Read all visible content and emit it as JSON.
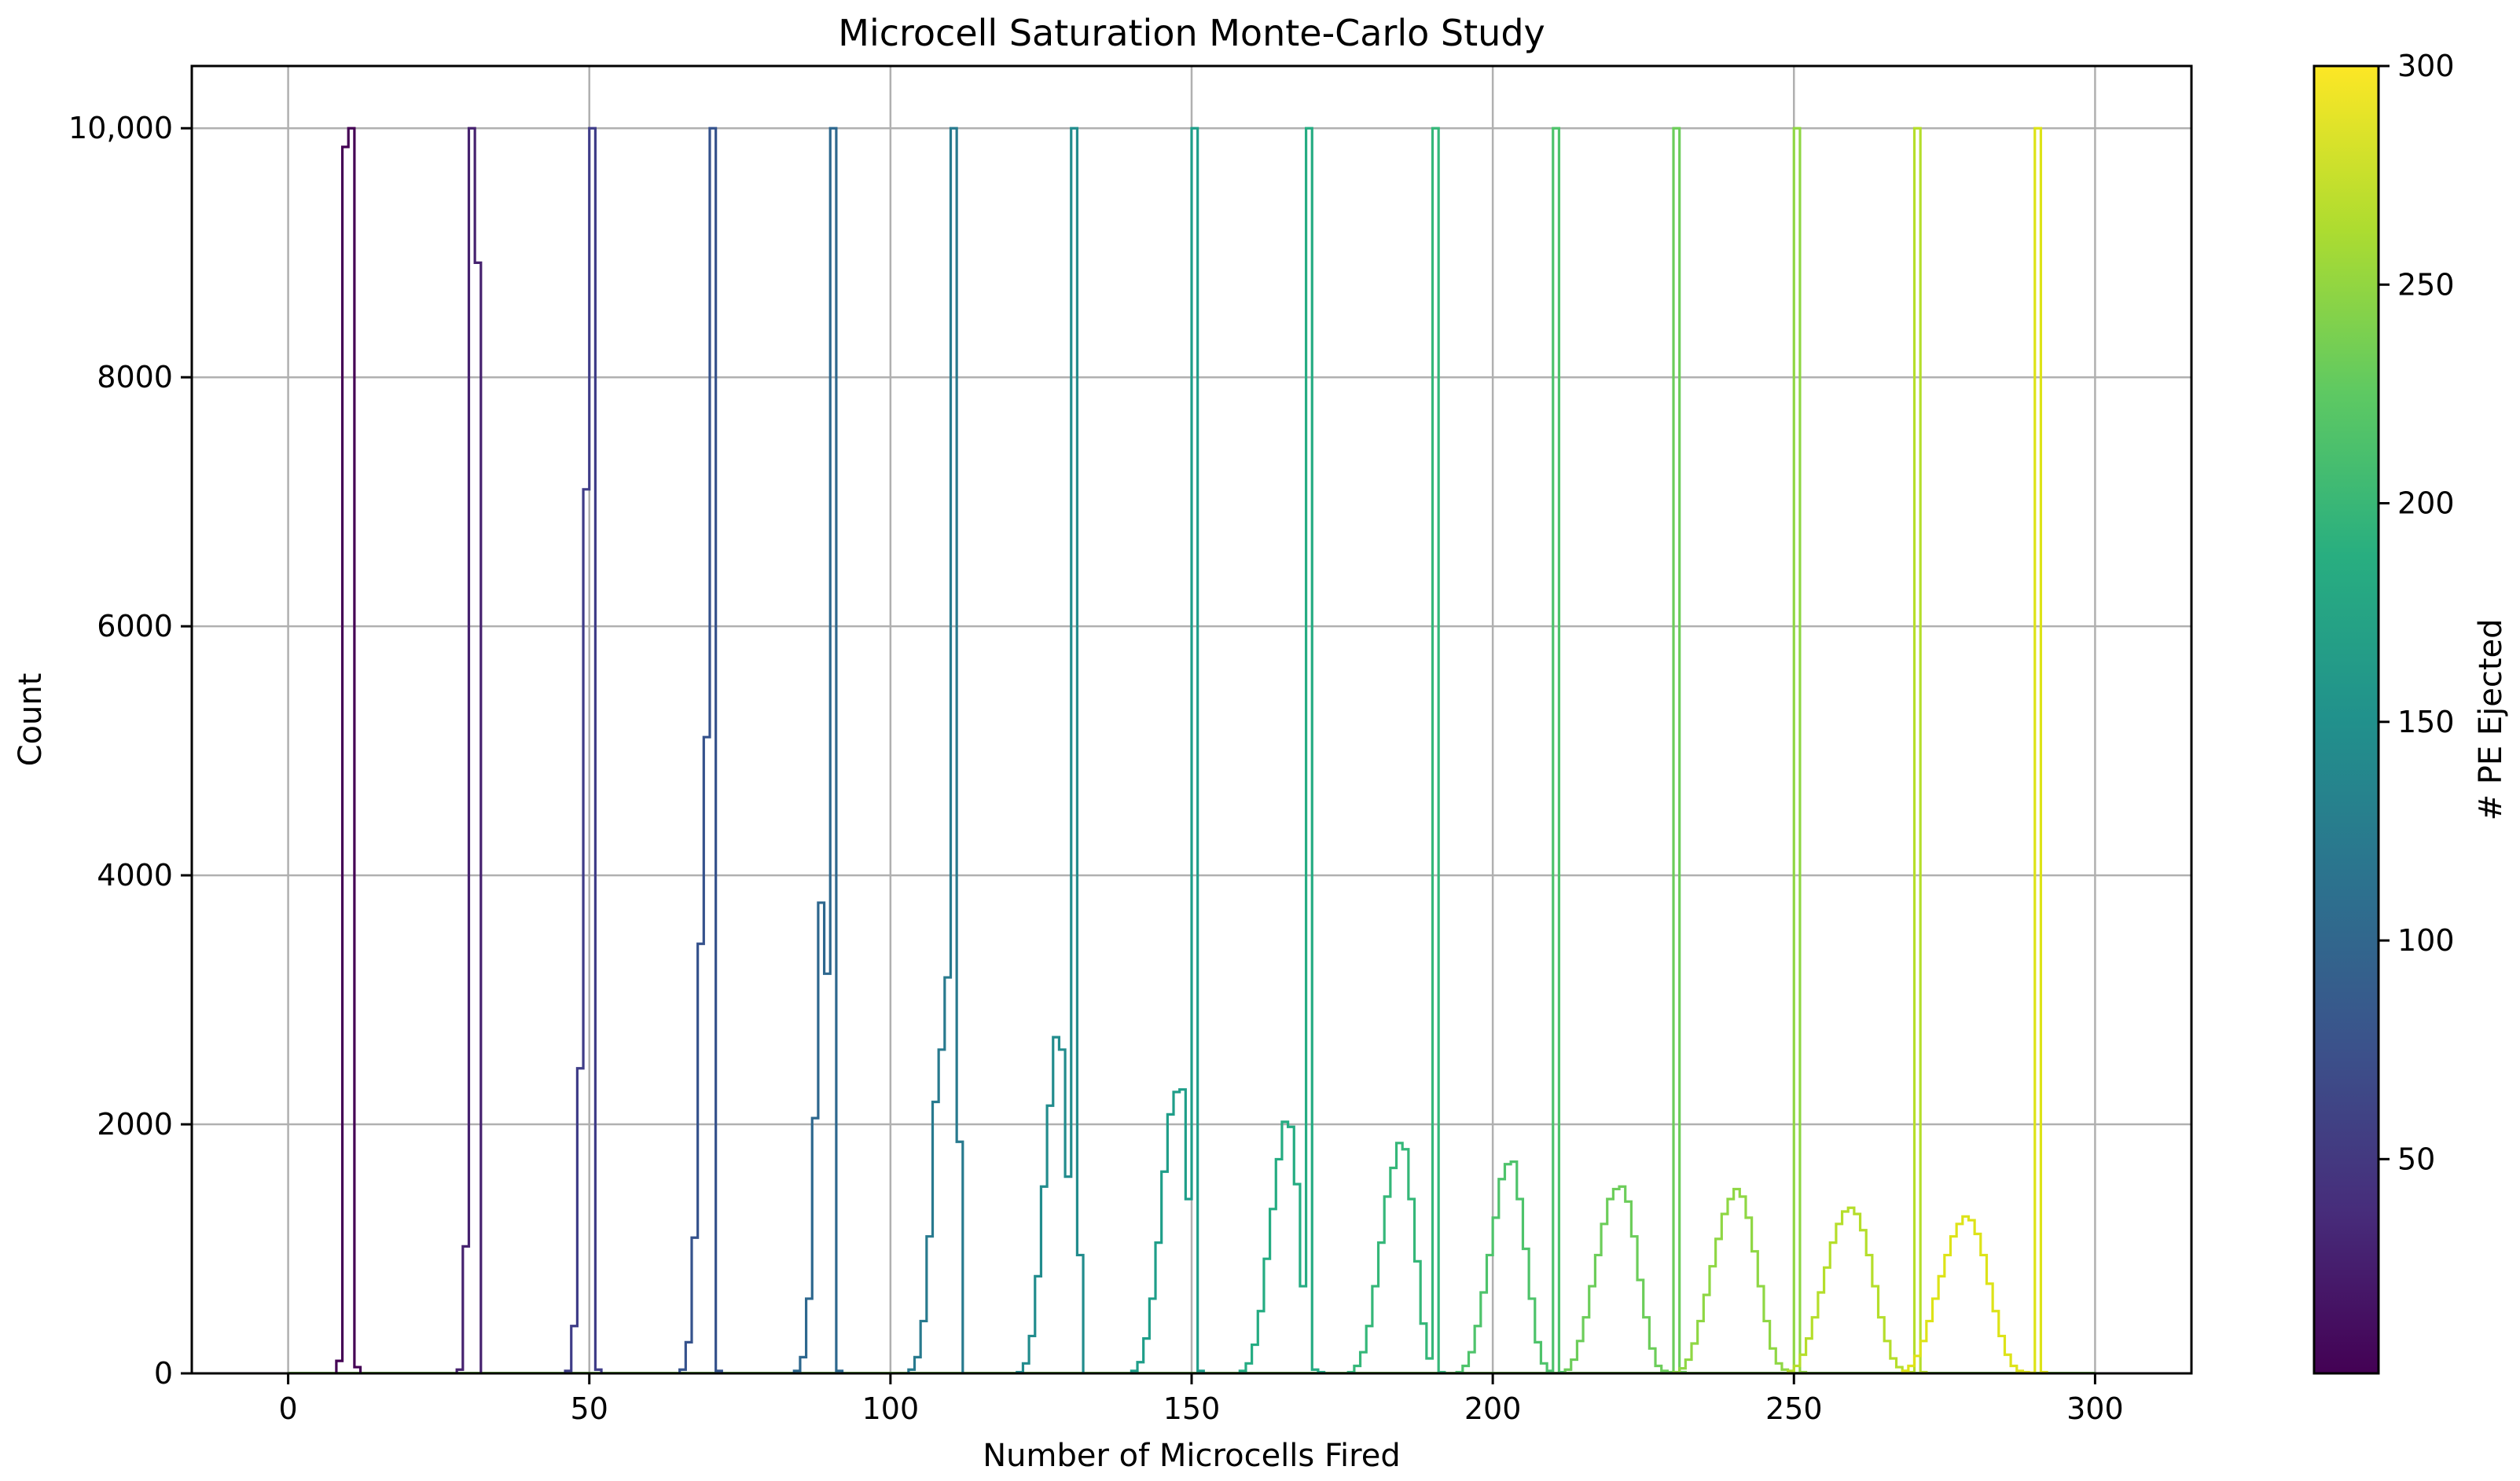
{
  "chart_data": {
    "type": "line",
    "title": "Microcell Saturation Monte-Carlo Study",
    "xlabel": "Number of Microcells Fired",
    "ylabel": "Count",
    "xlim": [
      -16,
      316
    ],
    "ylim": [
      0,
      10500
    ],
    "grid": true,
    "xticks": [
      0,
      50,
      100,
      150,
      200,
      250,
      300
    ],
    "xtick_labels": [
      "0",
      "50",
      "100",
      "150",
      "200",
      "250",
      "300"
    ],
    "yticks": [
      0,
      2000,
      4000,
      6000,
      8000,
      10000
    ],
    "ytick_labels": [
      "0",
      "2000",
      "4000",
      "6000",
      "8000",
      "10,000"
    ],
    "colorbar": {
      "label": "# PE Ejected",
      "colormap": "viridis",
      "range": [
        1,
        300
      ],
      "ticks": [
        50,
        100,
        150,
        200,
        250,
        300
      ],
      "tick_labels": [
        "50",
        "100",
        "150",
        "200",
        "250",
        "300"
      ]
    },
    "series_note": "pairs of histograms: sharp line at PE count, broadened distribution for saturated microcells",
    "series": [
      {
        "pe": 10,
        "color": "#440154",
        "x": [
          8,
          9,
          10,
          11
        ],
        "values": [
          100,
          9850,
          10000,
          50
        ]
      },
      {
        "pe": 30,
        "color": "#46226f",
        "x": [
          28,
          29,
          30,
          31
        ],
        "values": [
          30,
          1020,
          10000,
          8920
        ]
      },
      {
        "pe": 50,
        "color": "#3f3d88",
        "x": [
          46,
          47,
          48,
          49,
          50,
          51
        ],
        "values": [
          20,
          380,
          2450,
          7100,
          10000,
          30
        ]
      },
      {
        "pe": 70,
        "color": "#35528c",
        "x": [
          65,
          66,
          67,
          68,
          69,
          70,
          71
        ],
        "values": [
          30,
          250,
          1090,
          3450,
          5110,
          10000,
          20
        ]
      },
      {
        "pe": 90,
        "color": "#2d678e",
        "x": [
          84,
          85,
          86,
          87,
          88,
          89,
          90,
          91
        ],
        "values": [
          20,
          130,
          600,
          2050,
          3780,
          3210,
          10000,
          20
        ]
      },
      {
        "pe": 110,
        "color": "#287a8e",
        "x": [
          103,
          104,
          105,
          106,
          107,
          108,
          109,
          110,
          111
        ],
        "values": [
          30,
          130,
          420,
          1100,
          2180,
          2600,
          3180,
          10000,
          1860
        ]
      },
      {
        "pe": 130,
        "color": "#228c8d",
        "x": [
          121,
          122,
          123,
          124,
          125,
          126,
          127,
          128,
          129,
          130,
          131
        ],
        "values": [
          10,
          80,
          300,
          780,
          1500,
          2150,
          2700,
          2600,
          1580,
          10000,
          950
        ]
      },
      {
        "pe": 150,
        "color": "#1f9e89",
        "x": [
          140,
          141,
          142,
          143,
          144,
          145,
          146,
          147,
          148,
          149,
          150,
          151
        ],
        "values": [
          20,
          90,
          280,
          600,
          1050,
          1620,
          2080,
          2260,
          2280,
          1400,
          10000,
          20
        ]
      },
      {
        "pe": 170,
        "color": "#25ac82",
        "x": [
          158,
          159,
          160,
          161,
          162,
          163,
          164,
          165,
          166,
          167,
          168,
          169,
          170,
          171
        ],
        "values": [
          20,
          80,
          230,
          500,
          920,
          1320,
          1720,
          2020,
          1980,
          1520,
          700,
          10000,
          30,
          10
        ]
      },
      {
        "pe": 190,
        "color": "#35b779",
        "x": [
          176,
          177,
          178,
          179,
          180,
          181,
          182,
          183,
          184,
          185,
          186,
          187,
          188,
          189,
          190,
          191
        ],
        "values": [
          10,
          60,
          170,
          380,
          700,
          1050,
          1420,
          1650,
          1850,
          1800,
          1400,
          900,
          400,
          120,
          10000,
          10
        ]
      },
      {
        "pe": 210,
        "color": "#4ec36b",
        "x": [
          194,
          195,
          196,
          197,
          198,
          199,
          200,
          201,
          202,
          203,
          204,
          205,
          206,
          207,
          208,
          209,
          210,
          211
        ],
        "values": [
          10,
          60,
          170,
          380,
          650,
          950,
          1250,
          1560,
          1680,
          1700,
          1400,
          1000,
          600,
          250,
          80,
          20,
          10000,
          10
        ]
      },
      {
        "pe": 230,
        "color": "#6ccd5a",
        "x": [
          212,
          213,
          214,
          215,
          216,
          217,
          218,
          219,
          220,
          221,
          222,
          223,
          224,
          225,
          226,
          227,
          228,
          229,
          230,
          231
        ],
        "values": [
          30,
          110,
          260,
          450,
          700,
          950,
          1200,
          1400,
          1480,
          1500,
          1380,
          1100,
          750,
          450,
          200,
          60,
          20,
          10,
          10000,
          10
        ]
      },
      {
        "pe": 250,
        "color": "#8fd744",
        "x": [
          230,
          231,
          232,
          233,
          234,
          235,
          236,
          237,
          238,
          239,
          240,
          241,
          242,
          243,
          244,
          245,
          246,
          247,
          248,
          249,
          250,
          251
        ],
        "values": [
          10,
          40,
          110,
          240,
          420,
          630,
          860,
          1080,
          1280,
          1400,
          1480,
          1420,
          1250,
          980,
          700,
          420,
          200,
          80,
          30,
          10,
          10000,
          10
        ]
      },
      {
        "pe": 270,
        "color": "#b5de2b",
        "x": [
          249,
          250,
          251,
          252,
          253,
          254,
          255,
          256,
          257,
          258,
          259,
          260,
          261,
          262,
          263,
          264,
          265,
          266,
          267,
          268,
          269,
          270,
          271
        ],
        "values": [
          20,
          60,
          150,
          280,
          450,
          650,
          850,
          1050,
          1200,
          1300,
          1330,
          1280,
          1150,
          950,
          700,
          450,
          260,
          120,
          50,
          20,
          10,
          10000,
          10
        ]
      },
      {
        "pe": 290,
        "color": "#dde318",
        "x": [
          268,
          269,
          270,
          271,
          272,
          273,
          274,
          275,
          276,
          277,
          278,
          279,
          280,
          281,
          282,
          283,
          284,
          285,
          286,
          287,
          288,
          289,
          290,
          291
        ],
        "values": [
          20,
          60,
          140,
          260,
          420,
          600,
          780,
          950,
          1100,
          1200,
          1260,
          1230,
          1120,
          950,
          720,
          500,
          300,
          150,
          60,
          20,
          10,
          5,
          10000,
          10
        ]
      }
    ]
  }
}
